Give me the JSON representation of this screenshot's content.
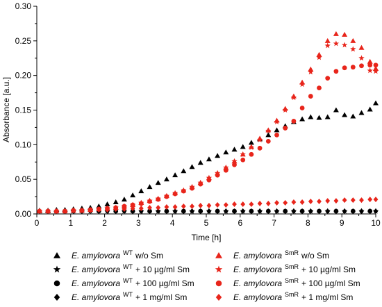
{
  "chart_data": {
    "type": "scatter",
    "xlabel": "Time [h]",
    "ylabel": "Absorbance [a.u.]",
    "xlim": [
      0,
      10
    ],
    "ylim": [
      0,
      0.3
    ],
    "x_ticks": [
      "0",
      "1",
      "2",
      "3",
      "4",
      "5",
      "6",
      "7",
      "8",
      "9",
      "10"
    ],
    "y_ticks": [
      "0.00",
      "0.05",
      "0.10",
      "0.15",
      "0.20",
      "0.25",
      "0.30"
    ],
    "grid": false,
    "legend_position": "bottom",
    "colors": {
      "black": "#000000",
      "red": "#e8251b"
    },
    "series": [
      {
        "legend_name": "E. amylovora",
        "legend_sup": "WT",
        "legend_suffix": "w/o Sm",
        "marker": "triangle",
        "color": "#000000",
        "points": [
          [
            0.08,
            0.005
          ],
          [
            0.33,
            0.005
          ],
          [
            0.58,
            0.006
          ],
          [
            0.83,
            0.006
          ],
          [
            1.08,
            0.007
          ],
          [
            1.33,
            0.008
          ],
          [
            1.58,
            0.009
          ],
          [
            1.83,
            0.011
          ],
          [
            2.08,
            0.014
          ],
          [
            2.33,
            0.017
          ],
          [
            2.58,
            0.021
          ],
          [
            2.83,
            0.027
          ],
          [
            3.08,
            0.033
          ],
          [
            3.33,
            0.039
          ],
          [
            3.58,
            0.045
          ],
          [
            3.83,
            0.05
          ],
          [
            4.08,
            0.056
          ],
          [
            4.33,
            0.062
          ],
          [
            4.58,
            0.068
          ],
          [
            4.83,
            0.074
          ],
          [
            5.08,
            0.079
          ],
          [
            5.33,
            0.084
          ],
          [
            5.58,
            0.089
          ],
          [
            5.83,
            0.093
          ],
          [
            6.08,
            0.097
          ],
          [
            6.33,
            0.103
          ],
          [
            6.58,
            0.108
          ],
          [
            6.83,
            0.114
          ],
          [
            7.08,
            0.121
          ],
          [
            7.33,
            0.127
          ],
          [
            7.58,
            0.133
          ],
          [
            7.83,
            0.137
          ],
          [
            8.08,
            0.14
          ],
          [
            8.33,
            0.139
          ],
          [
            8.58,
            0.14
          ],
          [
            8.83,
            0.15
          ],
          [
            9.08,
            0.143
          ],
          [
            9.33,
            0.141
          ],
          [
            9.58,
            0.146
          ],
          [
            9.83,
            0.151
          ],
          [
            10.0,
            0.16
          ]
        ]
      },
      {
        "legend_name": "E. amylovora",
        "legend_sup": "WT",
        "legend_suffix": "+ 10 µg/ml Sm",
        "marker": "star",
        "color": "#000000",
        "points": [
          [
            0.08,
            0.004
          ],
          [
            0.58,
            0.004
          ],
          [
            1.08,
            0.004
          ],
          [
            1.58,
            0.004
          ],
          [
            2.08,
            0.004
          ],
          [
            2.58,
            0.004
          ],
          [
            3.08,
            0.004
          ],
          [
            3.58,
            0.004
          ],
          [
            4.08,
            0.004
          ],
          [
            4.58,
            0.004
          ],
          [
            5.08,
            0.004
          ],
          [
            5.58,
            0.004
          ],
          [
            6.08,
            0.004
          ],
          [
            6.58,
            0.004
          ],
          [
            7.08,
            0.004
          ],
          [
            7.58,
            0.004
          ],
          [
            8.08,
            0.004
          ],
          [
            8.58,
            0.004
          ],
          [
            9.08,
            0.004
          ],
          [
            9.58,
            0.004
          ],
          [
            10.0,
            0.004
          ]
        ]
      },
      {
        "legend_name": "E. amylovora",
        "legend_sup": "WT",
        "legend_suffix": "+ 100 µg/ml Sm",
        "marker": "circle",
        "color": "#000000",
        "points": [
          [
            0.33,
            0.004
          ],
          [
            0.83,
            0.004
          ],
          [
            1.33,
            0.004
          ],
          [
            1.83,
            0.004
          ],
          [
            2.33,
            0.004
          ],
          [
            2.83,
            0.004
          ],
          [
            3.33,
            0.004
          ],
          [
            3.83,
            0.004
          ],
          [
            4.33,
            0.004
          ],
          [
            4.83,
            0.004
          ],
          [
            5.33,
            0.004
          ],
          [
            5.83,
            0.004
          ],
          [
            6.33,
            0.004
          ],
          [
            6.83,
            0.004
          ],
          [
            7.33,
            0.004
          ],
          [
            7.83,
            0.004
          ],
          [
            8.33,
            0.004
          ],
          [
            8.83,
            0.004
          ],
          [
            9.33,
            0.004
          ],
          [
            9.83,
            0.004
          ]
        ]
      },
      {
        "legend_name": "E. amylovora",
        "legend_sup": "WT",
        "legend_suffix": "+ 1 mg/ml Sm",
        "marker": "diamond",
        "color": "#000000",
        "points": [
          [
            0.08,
            0.004
          ],
          [
            0.33,
            0.004
          ],
          [
            0.58,
            0.004
          ],
          [
            0.83,
            0.004
          ],
          [
            1.08,
            0.004
          ],
          [
            1.33,
            0.004
          ],
          [
            1.58,
            0.004
          ],
          [
            1.83,
            0.004
          ],
          [
            2.08,
            0.004
          ],
          [
            2.33,
            0.004
          ],
          [
            2.58,
            0.004
          ],
          [
            2.83,
            0.004
          ],
          [
            3.08,
            0.004
          ],
          [
            3.33,
            0.004
          ],
          [
            3.58,
            0.004
          ],
          [
            3.83,
            0.004
          ],
          [
            4.08,
            0.004
          ],
          [
            4.33,
            0.004
          ],
          [
            4.58,
            0.004
          ],
          [
            4.83,
            0.004
          ],
          [
            5.08,
            0.004
          ],
          [
            5.33,
            0.004
          ],
          [
            5.58,
            0.004
          ],
          [
            5.83,
            0.004
          ],
          [
            6.08,
            0.004
          ],
          [
            6.33,
            0.004
          ],
          [
            6.58,
            0.004
          ],
          [
            6.83,
            0.004
          ],
          [
            7.08,
            0.004
          ],
          [
            7.33,
            0.004
          ],
          [
            7.58,
            0.004
          ],
          [
            7.83,
            0.004
          ],
          [
            8.08,
            0.004
          ],
          [
            8.33,
            0.004
          ],
          [
            8.58,
            0.004
          ],
          [
            8.83,
            0.004
          ],
          [
            9.08,
            0.004
          ],
          [
            9.33,
            0.004
          ],
          [
            9.58,
            0.004
          ],
          [
            9.83,
            0.004
          ],
          [
            10.0,
            0.004
          ]
        ]
      },
      {
        "legend_name": "E. amylovora",
        "legend_sup": "SmR",
        "legend_suffix": "w/o Sm",
        "marker": "triangle",
        "color": "#e8251b",
        "points": [
          [
            0.08,
            0.004
          ],
          [
            0.33,
            0.004
          ],
          [
            0.58,
            0.004
          ],
          [
            0.83,
            0.004
          ],
          [
            1.08,
            0.005
          ],
          [
            1.33,
            0.005
          ],
          [
            1.58,
            0.006
          ],
          [
            1.83,
            0.007
          ],
          [
            2.08,
            0.008
          ],
          [
            2.33,
            0.009
          ],
          [
            2.58,
            0.011
          ],
          [
            2.83,
            0.013
          ],
          [
            3.08,
            0.016
          ],
          [
            3.33,
            0.019
          ],
          [
            3.58,
            0.022
          ],
          [
            3.83,
            0.026
          ],
          [
            4.08,
            0.03
          ],
          [
            4.33,
            0.034
          ],
          [
            4.58,
            0.039
          ],
          [
            4.83,
            0.045
          ],
          [
            5.08,
            0.052
          ],
          [
            5.33,
            0.059
          ],
          [
            5.58,
            0.067
          ],
          [
            5.83,
            0.076
          ],
          [
            6.08,
            0.086
          ],
          [
            6.33,
            0.097
          ],
          [
            6.58,
            0.109
          ],
          [
            6.83,
            0.121
          ],
          [
            7.08,
            0.135
          ],
          [
            7.33,
            0.152
          ],
          [
            7.58,
            0.17
          ],
          [
            7.83,
            0.19
          ],
          [
            8.08,
            0.209
          ],
          [
            8.33,
            0.23
          ],
          [
            8.58,
            0.25
          ],
          [
            8.83,
            0.26
          ],
          [
            9.08,
            0.259
          ],
          [
            9.33,
            0.25
          ],
          [
            9.58,
            0.24
          ],
          [
            9.83,
            0.22
          ],
          [
            10.0,
            0.21
          ]
        ]
      },
      {
        "legend_name": "E. amylovora",
        "legend_sup": "SmR",
        "legend_suffix": "+ 10 µg/ml Sm",
        "marker": "star",
        "color": "#e8251b",
        "points": [
          [
            0.08,
            0.004
          ],
          [
            0.33,
            0.004
          ],
          [
            0.58,
            0.004
          ],
          [
            0.83,
            0.004
          ],
          [
            1.08,
            0.005
          ],
          [
            1.33,
            0.005
          ],
          [
            1.58,
            0.006
          ],
          [
            1.83,
            0.007
          ],
          [
            2.08,
            0.008
          ],
          [
            2.33,
            0.009
          ],
          [
            2.58,
            0.011
          ],
          [
            2.83,
            0.013
          ],
          [
            3.08,
            0.016
          ],
          [
            3.33,
            0.019
          ],
          [
            3.58,
            0.022
          ],
          [
            3.83,
            0.026
          ],
          [
            4.08,
            0.03
          ],
          [
            4.33,
            0.034
          ],
          [
            4.58,
            0.039
          ],
          [
            4.83,
            0.045
          ],
          [
            5.08,
            0.052
          ],
          [
            5.33,
            0.059
          ],
          [
            5.58,
            0.067
          ],
          [
            5.83,
            0.076
          ],
          [
            6.08,
            0.086
          ],
          [
            6.33,
            0.096
          ],
          [
            6.58,
            0.107
          ],
          [
            6.83,
            0.12
          ],
          [
            7.08,
            0.133
          ],
          [
            7.33,
            0.15
          ],
          [
            7.58,
            0.168
          ],
          [
            7.83,
            0.187
          ],
          [
            8.08,
            0.205
          ],
          [
            8.33,
            0.226
          ],
          [
            8.58,
            0.243
          ],
          [
            8.83,
            0.246
          ],
          [
            9.08,
            0.244
          ],
          [
            9.33,
            0.238
          ],
          [
            9.58,
            0.225
          ],
          [
            9.83,
            0.207
          ],
          [
            10.0,
            0.206
          ]
        ]
      },
      {
        "legend_name": "E. amylovora",
        "legend_sup": "SmR",
        "legend_suffix": "+ 100 µg/ml Sm",
        "marker": "circle",
        "color": "#e8251b",
        "points": [
          [
            0.08,
            0.004
          ],
          [
            0.33,
            0.004
          ],
          [
            0.58,
            0.004
          ],
          [
            0.83,
            0.004
          ],
          [
            1.08,
            0.005
          ],
          [
            1.33,
            0.005
          ],
          [
            1.58,
            0.006
          ],
          [
            1.83,
            0.007
          ],
          [
            2.08,
            0.008
          ],
          [
            2.33,
            0.009
          ],
          [
            2.58,
            0.011
          ],
          [
            2.83,
            0.013
          ],
          [
            3.08,
            0.015
          ],
          [
            3.33,
            0.018
          ],
          [
            3.58,
            0.021
          ],
          [
            3.83,
            0.025
          ],
          [
            4.08,
            0.029
          ],
          [
            4.33,
            0.033
          ],
          [
            4.58,
            0.037
          ],
          [
            4.83,
            0.043
          ],
          [
            5.08,
            0.049
          ],
          [
            5.33,
            0.056
          ],
          [
            5.58,
            0.063
          ],
          [
            5.83,
            0.071
          ],
          [
            6.08,
            0.078
          ],
          [
            6.33,
            0.086
          ],
          [
            6.58,
            0.095
          ],
          [
            6.83,
            0.105
          ],
          [
            7.08,
            0.114
          ],
          [
            7.33,
            0.124
          ],
          [
            7.58,
            0.134
          ],
          [
            7.83,
            0.153
          ],
          [
            8.08,
            0.17
          ],
          [
            8.33,
            0.182
          ],
          [
            8.58,
            0.196
          ],
          [
            8.83,
            0.206
          ],
          [
            9.08,
            0.211
          ],
          [
            9.33,
            0.212
          ],
          [
            9.58,
            0.214
          ],
          [
            9.83,
            0.215
          ],
          [
            10.0,
            0.215
          ]
        ]
      },
      {
        "legend_name": "E. amylovora",
        "legend_sup": "SmR",
        "legend_suffix": "+ 1 mg/ml Sm",
        "marker": "diamond",
        "color": "#e8251b",
        "points": [
          [
            0.08,
            0.004
          ],
          [
            0.33,
            0.004
          ],
          [
            0.58,
            0.004
          ],
          [
            0.83,
            0.004
          ],
          [
            1.08,
            0.005
          ],
          [
            1.33,
            0.005
          ],
          [
            1.58,
            0.005
          ],
          [
            1.83,
            0.006
          ],
          [
            2.08,
            0.006
          ],
          [
            2.33,
            0.007
          ],
          [
            2.58,
            0.007
          ],
          [
            2.83,
            0.008
          ],
          [
            3.08,
            0.008
          ],
          [
            3.33,
            0.009
          ],
          [
            3.58,
            0.009
          ],
          [
            3.83,
            0.01
          ],
          [
            4.08,
            0.01
          ],
          [
            4.33,
            0.011
          ],
          [
            4.58,
            0.011
          ],
          [
            4.83,
            0.012
          ],
          [
            5.08,
            0.012
          ],
          [
            5.33,
            0.013
          ],
          [
            5.58,
            0.013
          ],
          [
            5.83,
            0.014
          ],
          [
            6.08,
            0.014
          ],
          [
            6.33,
            0.014
          ],
          [
            6.58,
            0.015
          ],
          [
            6.83,
            0.015
          ],
          [
            7.08,
            0.016
          ],
          [
            7.33,
            0.016
          ],
          [
            7.58,
            0.017
          ],
          [
            7.83,
            0.017
          ],
          [
            8.08,
            0.018
          ],
          [
            8.33,
            0.018
          ],
          [
            8.58,
            0.019
          ],
          [
            8.83,
            0.019
          ],
          [
            9.08,
            0.02
          ],
          [
            9.33,
            0.02
          ],
          [
            9.58,
            0.02
          ],
          [
            9.83,
            0.021
          ],
          [
            10.0,
            0.021
          ]
        ]
      }
    ]
  }
}
